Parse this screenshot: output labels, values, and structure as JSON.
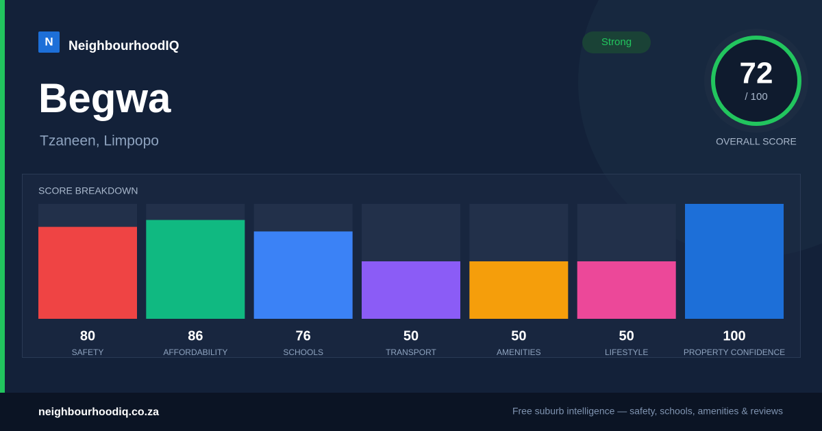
{
  "brand": {
    "icon": "N",
    "name": "NeighbourhoodIQ"
  },
  "title": "Begwa",
  "location": "Tzaneen, Limpopo",
  "badge": "Strong",
  "overall": {
    "value": 72,
    "out_of": "/ 100",
    "label": "OVERALL SCORE"
  },
  "chart_data": {
    "type": "bar",
    "title": "SCORE BREAKDOWN",
    "categories": [
      "SAFETY",
      "AFFORDABILITY",
      "SCHOOLS",
      "TRANSPORT",
      "AMENITIES",
      "LIFESTYLE",
      "PROPERTY CONFIDENCE"
    ],
    "values": [
      80,
      86,
      76,
      50,
      50,
      50,
      100
    ],
    "colors": [
      "#ef4444",
      "#10b981",
      "#3b82f6",
      "#8b5cf6",
      "#f59e0b",
      "#ec4899",
      "#1d6fd8"
    ],
    "ylim": [
      0,
      100
    ]
  },
  "footer": {
    "site": "neighbourhoodiq.co.za",
    "tagline": "Free suburb intelligence — safety, schools, amenities & reviews"
  }
}
